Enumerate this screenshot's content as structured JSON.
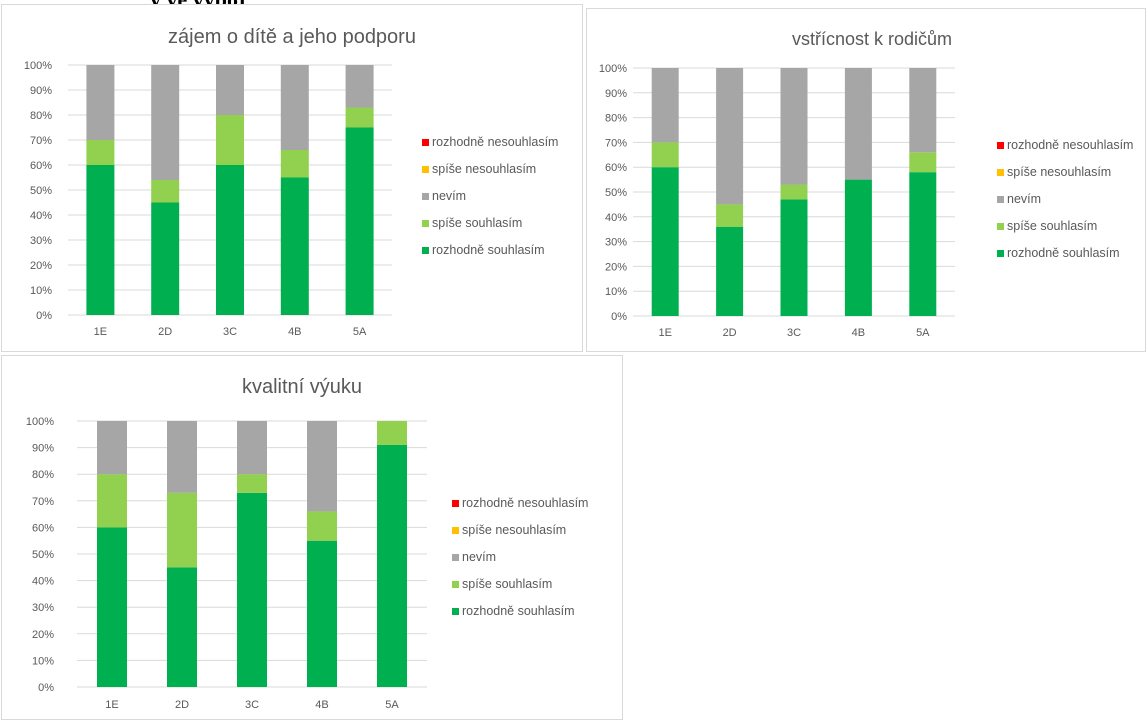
{
  "header_fragment": "y ve výpoj",
  "legend": [
    {
      "label": "rozhodně nesouhlasím",
      "color": "#ff0000"
    },
    {
      "label": "spíše nesouhlasím",
      "color": "#ffc000"
    },
    {
      "label": "nevím",
      "color": "#a6a6a6"
    },
    {
      "label": "spíše souhlasím",
      "color": "#92d050"
    },
    {
      "label": "rozhodně souhlasím",
      "color": "#00b050"
    }
  ],
  "chart_data": [
    {
      "type": "bar",
      "stacked": "100%",
      "title": "zájem o dítě a jeho podporu",
      "categories": [
        "1E",
        "2D",
        "3C",
        "4B",
        "5A"
      ],
      "yticks": [
        "0%",
        "10%",
        "20%",
        "30%",
        "40%",
        "50%",
        "60%",
        "70%",
        "80%",
        "90%",
        "100%"
      ],
      "ylim": [
        0,
        100
      ],
      "grid": true,
      "legend_position": "right",
      "series": [
        {
          "name": "rozhodně souhlasím",
          "values": [
            60,
            45,
            60,
            55,
            75
          ]
        },
        {
          "name": "spíše souhlasím",
          "values": [
            10,
            9,
            20,
            11,
            8
          ]
        },
        {
          "name": "nevím",
          "values": [
            30,
            46,
            20,
            34,
            17
          ]
        },
        {
          "name": "spíše nesouhlasím",
          "values": [
            0,
            0,
            0,
            0,
            0
          ]
        },
        {
          "name": "rozhodně nesouhlasím",
          "values": [
            0,
            0,
            0,
            0,
            0
          ]
        }
      ]
    },
    {
      "type": "bar",
      "stacked": "100%",
      "title": "vstřícnost k rodičům",
      "categories": [
        "1E",
        "2D",
        "3C",
        "4B",
        "5A"
      ],
      "yticks": [
        "0%",
        "10%",
        "20%",
        "30%",
        "40%",
        "50%",
        "60%",
        "70%",
        "80%",
        "90%",
        "100%"
      ],
      "ylim": [
        0,
        100
      ],
      "grid": true,
      "legend_position": "right",
      "series": [
        {
          "name": "rozhodně souhlasím",
          "values": [
            60,
            36,
            47,
            55,
            58
          ]
        },
        {
          "name": "spíše souhlasím",
          "values": [
            10,
            9,
            6,
            0,
            8
          ]
        },
        {
          "name": "nevím",
          "values": [
            30,
            55,
            47,
            45,
            34
          ]
        },
        {
          "name": "spíše nesouhlasím",
          "values": [
            0,
            0,
            0,
            0,
            0
          ]
        },
        {
          "name": "rozhodně nesouhlasím",
          "values": [
            0,
            0,
            0,
            0,
            0
          ]
        }
      ]
    },
    {
      "type": "bar",
      "stacked": "100%",
      "title": "kvalitní výuku",
      "categories": [
        "1E",
        "2D",
        "3C",
        "4B",
        "5A"
      ],
      "yticks": [
        "0%",
        "10%",
        "20%",
        "30%",
        "40%",
        "50%",
        "60%",
        "70%",
        "80%",
        "90%",
        "100%"
      ],
      "ylim": [
        0,
        100
      ],
      "grid": true,
      "legend_position": "right",
      "series": [
        {
          "name": "rozhodně souhlasím",
          "values": [
            60,
            45,
            73,
            55,
            91
          ]
        },
        {
          "name": "spíše souhlasím",
          "values": [
            20,
            28,
            7,
            11,
            9
          ]
        },
        {
          "name": "nevím",
          "values": [
            20,
            27,
            20,
            34,
            0
          ]
        },
        {
          "name": "spíše nesouhlasím",
          "values": [
            0,
            0,
            0,
            0,
            0
          ]
        },
        {
          "name": "rozhodně nesouhlasím",
          "values": [
            0,
            0,
            0,
            0,
            0
          ]
        }
      ]
    }
  ]
}
